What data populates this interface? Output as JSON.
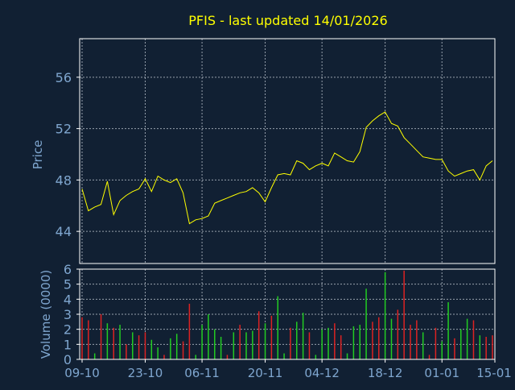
{
  "colors": {
    "background": "#112033",
    "title": "#ffff00",
    "axis_text": "#7fa6cf",
    "grid": "#d0d8e0",
    "frame": "#ffffff",
    "price_line": "#ffff00",
    "vol_up": "#22cc22",
    "vol_down": "#dd2222"
  },
  "chart_data": [
    {
      "type": "line",
      "title": "PFIS - last updated 14/01/2026",
      "xlabel": "",
      "ylabel": "Price",
      "ylim": [
        41.5,
        59
      ],
      "yticks": [
        44,
        48,
        52,
        56
      ],
      "xlim": [
        0,
        65
      ],
      "grid": true,
      "x_ticks": [
        {
          "i": 0,
          "label": "09-10"
        },
        {
          "i": 10,
          "label": "23-10"
        },
        {
          "i": 19,
          "label": "06-11"
        },
        {
          "i": 29,
          "label": "20-11"
        },
        {
          "i": 38,
          "label": "04-12"
        },
        {
          "i": 48,
          "label": "18-12"
        },
        {
          "i": 57,
          "label": "01-01"
        },
        {
          "i": 66,
          "label": "15-01"
        }
      ],
      "series": [
        {
          "name": "",
          "values": [
            47.3,
            45.6,
            45.9,
            46.1,
            47.9,
            45.3,
            46.4,
            46.8,
            47.1,
            47.3,
            48.1,
            47.1,
            48.3,
            48.0,
            47.8,
            48.1,
            47.0,
            44.6,
            44.9,
            45.0,
            45.2,
            46.2,
            46.4,
            46.6,
            46.8,
            47.0,
            47.1,
            47.4,
            47.0,
            46.3,
            47.4,
            48.4,
            48.5,
            48.4,
            49.5,
            49.3,
            48.8,
            49.1,
            49.3,
            49.1,
            50.1,
            49.8,
            49.5,
            49.4,
            50.2,
            52.1,
            52.6,
            53.0,
            53.3,
            52.4,
            52.2,
            51.3,
            50.8,
            50.3,
            49.8,
            49.7,
            49.6,
            49.6,
            48.7,
            48.3,
            48.5,
            48.7,
            48.8,
            48.0,
            49.1,
            49.5
          ]
        }
      ]
    },
    {
      "type": "bar",
      "xlabel": "",
      "ylabel": "Volume (0000)",
      "ylim": [
        0,
        6
      ],
      "yticks": [
        0,
        1,
        2,
        3,
        4,
        5,
        6
      ],
      "grid": true,
      "series": [
        {
          "name": "",
          "values": [
            2.8,
            2.6,
            0.4,
            3.0,
            2.4,
            2.1,
            2.3,
            1.0,
            1.8,
            1.6,
            1.8,
            1.3,
            0.8,
            0.3,
            1.4,
            1.7,
            1.2,
            3.7,
            0.3,
            2.3,
            3.0,
            2.0,
            1.5,
            0.3,
            1.8,
            2.3,
            1.8,
            1.9,
            3.2,
            2.4,
            2.9,
            4.2,
            0.4,
            2.1,
            2.5,
            3.1,
            1.8,
            0.3,
            2.0,
            2.1,
            2.4,
            1.6,
            0.4,
            2.2,
            2.3,
            4.7,
            2.5,
            2.8,
            5.8,
            2.7,
            3.3,
            5.9,
            2.3,
            2.6,
            1.8,
            0.3,
            2.1,
            1.2,
            3.8,
            1.4,
            2.0,
            2.7,
            2.6,
            1.6,
            1.5,
            1.6
          ],
          "direction": [
            "d",
            "d",
            "u",
            "d",
            "u",
            "d",
            "u",
            "d",
            "u",
            "d",
            "d",
            "u",
            "u",
            "d",
            "u",
            "u",
            "d",
            "d",
            "u",
            "u",
            "u",
            "u",
            "u",
            "d",
            "u",
            "d",
            "u",
            "u",
            "d",
            "u",
            "d",
            "u",
            "u",
            "d",
            "u",
            "u",
            "d",
            "u",
            "u",
            "u",
            "d",
            "d",
            "u",
            "u",
            "u",
            "u",
            "d",
            "d",
            "u",
            "u",
            "d",
            "d",
            "d",
            "d",
            "u",
            "d",
            "d",
            "u",
            "u",
            "d",
            "u",
            "u",
            "d",
            "u",
            "d",
            "d"
          ]
        }
      ]
    }
  ]
}
